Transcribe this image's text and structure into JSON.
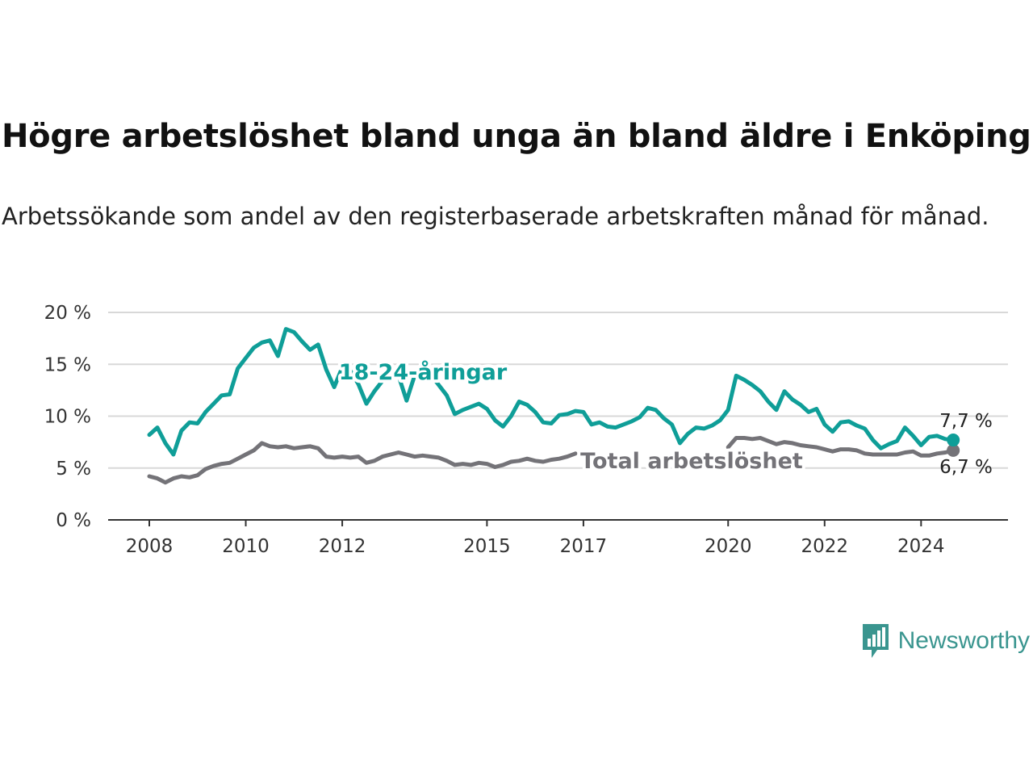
{
  "title": "Högre arbetslöshet bland unga än bland äldre i Enköping",
  "subtitle": "Arbetssökande som andel av den registerbaserade arbetskraften månad för månad.",
  "brand": "Newsworthy",
  "colors": {
    "youth": "#0f9e98",
    "total": "#747378",
    "grid": "#d8d8d8",
    "axis": "#333333",
    "brand": "#3a958f"
  },
  "chart_data": {
    "type": "line",
    "y_unit": "%",
    "ylim": [
      0,
      20
    ],
    "y_ticks": [
      {
        "value": 0,
        "label": "0 %"
      },
      {
        "value": 5,
        "label": "5 %"
      },
      {
        "value": 10,
        "label": "10 %"
      },
      {
        "value": 15,
        "label": "15 %"
      },
      {
        "value": 20,
        "label": "20 %"
      }
    ],
    "x_ticks": [
      "2008",
      "2010",
      "2012",
      "2015",
      "2017",
      "2020",
      "2022",
      "2024"
    ],
    "grid": "horizontal",
    "series": [
      {
        "name": "18-24-åringar",
        "end_label": "7,7 %",
        "points": [
          [
            "2008-01",
            8.2
          ],
          [
            "2008-03",
            8.9
          ],
          [
            "2008-05",
            7.4
          ],
          [
            "2008-07",
            6.3
          ],
          [
            "2008-09",
            8.6
          ],
          [
            "2008-11",
            9.4
          ],
          [
            "2009-01",
            9.3
          ],
          [
            "2009-03",
            10.4
          ],
          [
            "2009-05",
            11.2
          ],
          [
            "2009-07",
            12.0
          ],
          [
            "2009-09",
            12.1
          ],
          [
            "2009-11",
            14.6
          ],
          [
            "2010-01",
            15.6
          ],
          [
            "2010-03",
            16.6
          ],
          [
            "2010-05",
            17.1
          ],
          [
            "2010-07",
            17.3
          ],
          [
            "2010-09",
            15.8
          ],
          [
            "2010-11",
            18.4
          ],
          [
            "2011-01",
            18.1
          ],
          [
            "2011-03",
            17.2
          ],
          [
            "2011-05",
            16.4
          ],
          [
            "2011-07",
            16.9
          ],
          [
            "2011-09",
            14.5
          ],
          [
            "2011-11",
            12.8
          ],
          [
            "2012-01",
            14.7
          ],
          [
            "2012-03",
            14.4
          ],
          [
            "2012-05",
            13.1
          ],
          [
            "2012-07",
            11.2
          ],
          [
            "2012-09",
            12.4
          ],
          [
            "2012-11",
            13.4
          ],
          [
            "2013-01",
            13.6
          ],
          [
            "2013-03",
            13.9
          ],
          [
            "2013-05",
            11.5
          ],
          [
            "2013-07",
            13.9
          ],
          [
            "2013-09",
            13.6
          ],
          [
            "2013-11",
            14.0
          ],
          [
            "2014-01",
            13.0
          ],
          [
            "2014-03",
            12.0
          ],
          [
            "2014-05",
            10.2
          ],
          [
            "2014-07",
            10.6
          ],
          [
            "2014-09",
            10.9
          ],
          [
            "2014-11",
            11.2
          ],
          [
            "2015-01",
            10.7
          ],
          [
            "2015-03",
            9.6
          ],
          [
            "2015-05",
            9.0
          ],
          [
            "2015-07",
            10.0
          ],
          [
            "2015-09",
            11.4
          ],
          [
            "2015-11",
            11.1
          ],
          [
            "2016-01",
            10.4
          ],
          [
            "2016-03",
            9.4
          ],
          [
            "2016-05",
            9.3
          ],
          [
            "2016-07",
            10.1
          ],
          [
            "2016-09",
            10.2
          ],
          [
            "2016-11",
            10.5
          ],
          [
            "2017-01",
            10.4
          ],
          [
            "2017-03",
            9.2
          ],
          [
            "2017-05",
            9.4
          ],
          [
            "2017-07",
            9.0
          ],
          [
            "2017-09",
            8.9
          ],
          [
            "2017-11",
            9.2
          ],
          [
            "2018-01",
            9.5
          ],
          [
            "2018-03",
            9.9
          ],
          [
            "2018-05",
            10.8
          ],
          [
            "2018-07",
            10.6
          ],
          [
            "2018-09",
            9.8
          ],
          [
            "2018-11",
            9.2
          ],
          [
            "2019-01",
            7.4
          ],
          [
            "2019-03",
            8.3
          ],
          [
            "2019-05",
            8.9
          ],
          [
            "2019-07",
            8.8
          ],
          [
            "2019-09",
            9.1
          ],
          [
            "2019-11",
            9.6
          ],
          [
            "2020-01",
            10.6
          ],
          [
            "2020-03",
            13.9
          ],
          [
            "2020-05",
            13.5
          ],
          [
            "2020-07",
            13.0
          ],
          [
            "2020-09",
            12.4
          ],
          [
            "2020-11",
            11.4
          ],
          [
            "2021-01",
            10.6
          ],
          [
            "2021-03",
            12.4
          ],
          [
            "2021-05",
            11.6
          ],
          [
            "2021-07",
            11.1
          ],
          [
            "2021-09",
            10.4
          ],
          [
            "2021-11",
            10.7
          ],
          [
            "2022-01",
            9.2
          ],
          [
            "2022-03",
            8.5
          ],
          [
            "2022-05",
            9.4
          ],
          [
            "2022-07",
            9.5
          ],
          [
            "2022-09",
            9.1
          ],
          [
            "2022-11",
            8.8
          ],
          [
            "2023-01",
            7.7
          ],
          [
            "2023-03",
            6.9
          ],
          [
            "2023-05",
            7.3
          ],
          [
            "2023-07",
            7.6
          ],
          [
            "2023-09",
            8.9
          ],
          [
            "2023-11",
            8.1
          ],
          [
            "2024-01",
            7.2
          ],
          [
            "2024-03",
            8.0
          ],
          [
            "2024-05",
            8.1
          ],
          [
            "2024-07",
            7.8
          ],
          [
            "2024-09",
            7.7
          ]
        ]
      },
      {
        "name": "Total arbetslöshet",
        "end_label": "6,7 %",
        "points": [
          [
            "2008-01",
            4.2
          ],
          [
            "2008-03",
            4.0
          ],
          [
            "2008-05",
            3.6
          ],
          [
            "2008-07",
            4.0
          ],
          [
            "2008-09",
            4.2
          ],
          [
            "2008-11",
            4.1
          ],
          [
            "2009-01",
            4.3
          ],
          [
            "2009-03",
            4.9
          ],
          [
            "2009-05",
            5.2
          ],
          [
            "2009-07",
            5.4
          ],
          [
            "2009-09",
            5.5
          ],
          [
            "2009-11",
            5.9
          ],
          [
            "2010-01",
            6.3
          ],
          [
            "2010-03",
            6.7
          ],
          [
            "2010-05",
            7.4
          ],
          [
            "2010-07",
            7.1
          ],
          [
            "2010-09",
            7.0
          ],
          [
            "2010-11",
            7.1
          ],
          [
            "2011-01",
            6.9
          ],
          [
            "2011-03",
            7.0
          ],
          [
            "2011-05",
            7.1
          ],
          [
            "2011-07",
            6.9
          ],
          [
            "2011-09",
            6.1
          ],
          [
            "2011-11",
            6.0
          ],
          [
            "2012-01",
            6.1
          ],
          [
            "2012-03",
            6.0
          ],
          [
            "2012-05",
            6.1
          ],
          [
            "2012-07",
            5.5
          ],
          [
            "2012-09",
            5.7
          ],
          [
            "2012-11",
            6.1
          ],
          [
            "2013-01",
            6.3
          ],
          [
            "2013-03",
            6.5
          ],
          [
            "2013-05",
            6.3
          ],
          [
            "2013-07",
            6.1
          ],
          [
            "2013-09",
            6.2
          ],
          [
            "2013-11",
            6.1
          ],
          [
            "2014-01",
            6.0
          ],
          [
            "2014-03",
            5.7
          ],
          [
            "2014-05",
            5.3
          ],
          [
            "2014-07",
            5.4
          ],
          [
            "2014-09",
            5.3
          ],
          [
            "2014-11",
            5.5
          ],
          [
            "2015-01",
            5.4
          ],
          [
            "2015-03",
            5.1
          ],
          [
            "2015-05",
            5.3
          ],
          [
            "2015-07",
            5.6
          ],
          [
            "2015-09",
            5.7
          ],
          [
            "2015-11",
            5.9
          ],
          [
            "2016-01",
            5.7
          ],
          [
            "2016-03",
            5.6
          ],
          [
            "2016-05",
            5.8
          ],
          [
            "2016-07",
            5.9
          ],
          [
            "2016-09",
            6.1
          ],
          [
            "2016-11",
            6.4
          ],
          [
            "2020-01",
            7.0
          ],
          [
            "2020-03",
            7.9
          ],
          [
            "2020-05",
            7.9
          ],
          [
            "2020-07",
            7.8
          ],
          [
            "2020-09",
            7.9
          ],
          [
            "2020-11",
            7.6
          ],
          [
            "2021-01",
            7.3
          ],
          [
            "2021-03",
            7.5
          ],
          [
            "2021-05",
            7.4
          ],
          [
            "2021-07",
            7.2
          ],
          [
            "2021-09",
            7.1
          ],
          [
            "2021-11",
            7.0
          ],
          [
            "2022-01",
            6.8
          ],
          [
            "2022-03",
            6.6
          ],
          [
            "2022-05",
            6.8
          ],
          [
            "2022-07",
            6.8
          ],
          [
            "2022-09",
            6.7
          ],
          [
            "2022-11",
            6.4
          ],
          [
            "2023-01",
            6.3
          ],
          [
            "2023-03",
            6.3
          ],
          [
            "2023-05",
            6.3
          ],
          [
            "2023-07",
            6.3
          ],
          [
            "2023-09",
            6.5
          ],
          [
            "2023-11",
            6.6
          ],
          [
            "2024-01",
            6.2
          ],
          [
            "2024-03",
            6.2
          ],
          [
            "2024-05",
            6.4
          ],
          [
            "2024-07",
            6.5
          ],
          [
            "2024-09",
            6.7
          ]
        ]
      }
    ]
  }
}
